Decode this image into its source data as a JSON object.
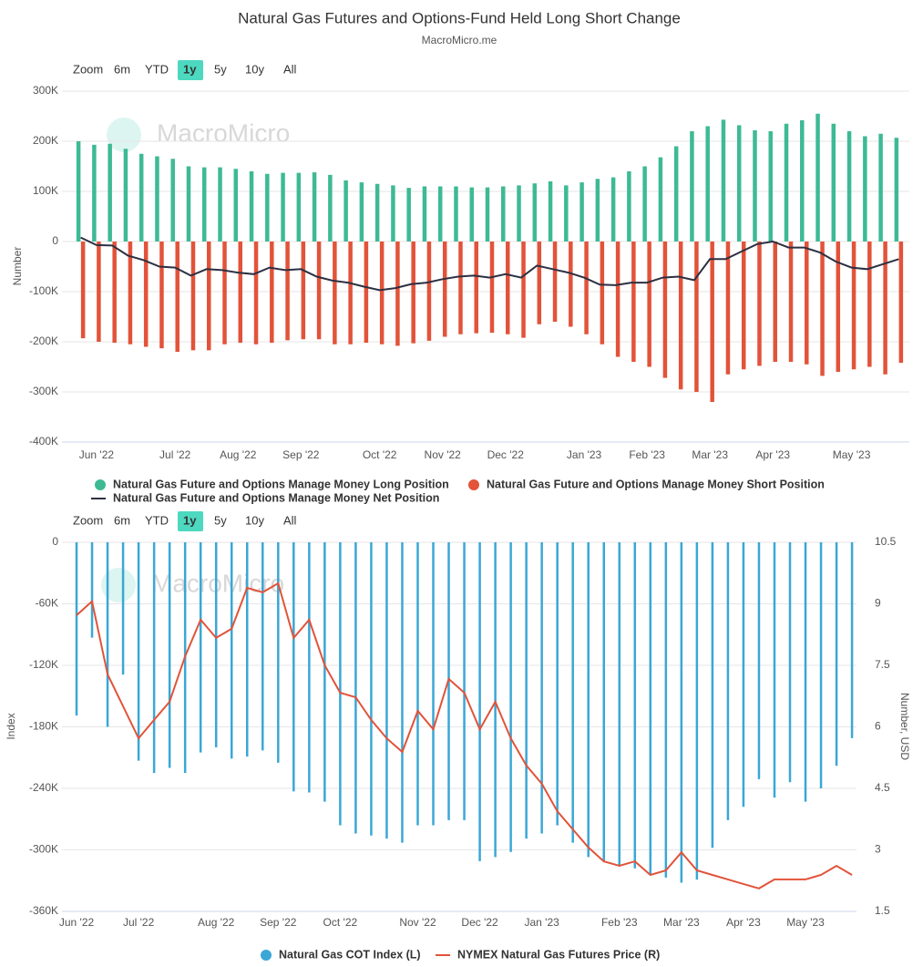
{
  "title": "Natural Gas Futures and Options-Fund Held Long Short Change",
  "subtitle": "MacroMicro.me",
  "chart_data": [
    {
      "type": "bar",
      "watermark": "MacroMicro",
      "zoom": {
        "label": "Zoom",
        "options": [
          "6m",
          "YTD",
          "1y",
          "5y",
          "10y",
          "All"
        ],
        "selected": "1y"
      },
      "ylabel": "Number",
      "categories": [
        null,
        "Jun '22",
        null,
        null,
        null,
        null,
        "Jul '22",
        null,
        null,
        null,
        "Aug '22",
        null,
        null,
        null,
        "Sep '22",
        null,
        null,
        null,
        null,
        "Oct '22",
        null,
        null,
        null,
        "Nov '22",
        null,
        null,
        null,
        "Dec '22",
        null,
        null,
        null,
        null,
        "Jan '23",
        null,
        null,
        null,
        "Feb '23",
        null,
        null,
        null,
        "Mar '23",
        null,
        null,
        null,
        "Apr '23",
        null,
        null,
        null,
        null,
        "May '23",
        null,
        null,
        null
      ],
      "ylim": [
        -400000,
        300000
      ],
      "yticks": [
        {
          "value": 300000,
          "label": "300K"
        },
        {
          "value": 200000,
          "label": "200K"
        },
        {
          "value": 100000,
          "label": "100K"
        },
        0,
        {
          "value": -100000,
          "label": "-100K"
        },
        {
          "value": -200000,
          "label": "-200K"
        },
        {
          "value": -300000,
          "label": "-300K"
        },
        {
          "value": -400000,
          "label": "-400K"
        }
      ],
      "grid": true,
      "series": [
        {
          "name": "Natural Gas Future and Options Manage Money Long Position",
          "type": "bar",
          "color": "#3dba94",
          "values": [
            200000,
            193000,
            195000,
            185000,
            175000,
            170000,
            165000,
            150000,
            148000,
            148000,
            145000,
            140000,
            135000,
            137000,
            137000,
            138000,
            133000,
            122000,
            118000,
            115000,
            112000,
            107000,
            110000,
            110000,
            110000,
            108000,
            108000,
            110000,
            112000,
            116000,
            120000,
            112000,
            118000,
            125000,
            128000,
            140000,
            150000,
            168000,
            190000,
            220000,
            230000,
            243000,
            232000,
            222000,
            220000,
            235000,
            242000,
            255000,
            235000,
            220000,
            210000,
            215000,
            207000
          ]
        },
        {
          "name": "Natural Gas Future and Options Manage Money Short Position",
          "type": "bar",
          "color": "#e2533a",
          "values": [
            -193000,
            -200000,
            -202000,
            -205000,
            -210000,
            -213000,
            -220000,
            -217000,
            -217000,
            -205000,
            -202000,
            -205000,
            -202000,
            -197000,
            -195000,
            -195000,
            -205000,
            -205000,
            -202000,
            -205000,
            -208000,
            -203000,
            -198000,
            -190000,
            -185000,
            -183000,
            -182000,
            -185000,
            -192000,
            -165000,
            -160000,
            -170000,
            -185000,
            -205000,
            -230000,
            -240000,
            -250000,
            -272000,
            -295000,
            -300000,
            -320000,
            -265000,
            -255000,
            -248000,
            -240000,
            -240000,
            -245000,
            -268000,
            -260000,
            -255000,
            -250000,
            -265000,
            -242000
          ]
        },
        {
          "name": "Natural Gas Future and Options Manage Money Net Position",
          "type": "line",
          "color": "#2d3042",
          "values": [
            8000,
            -7000,
            -8000,
            -28000,
            -37000,
            -50000,
            -52000,
            -68000,
            -55000,
            -57000,
            -62000,
            -65000,
            -52000,
            -57000,
            -55000,
            -70000,
            -78000,
            -82000,
            -90000,
            -97000,
            -93000,
            -85000,
            -82000,
            -75000,
            -70000,
            -68000,
            -72000,
            -65000,
            -72000,
            -48000,
            -55000,
            -62000,
            -72000,
            -86000,
            -87000,
            -82000,
            -82000,
            -72000,
            -70000,
            -77000,
            -35000,
            -35000,
            -20000,
            -5000,
            0,
            -12000,
            -12000,
            -22000,
            -40000,
            -52000,
            -55000,
            -45000,
            -35000
          ]
        }
      ]
    },
    {
      "type": "bar",
      "watermark": "MacroMicro",
      "zoom": {
        "label": "Zoom",
        "options": [
          "6m",
          "YTD",
          "1y",
          "5y",
          "10y",
          "All"
        ],
        "selected": "1y"
      },
      "ylabel": "Index",
      "y2label": "Number, USD",
      "categories": [
        "Jun '22",
        null,
        null,
        null,
        "Jul '22",
        null,
        null,
        null,
        null,
        "Aug '22",
        null,
        null,
        null,
        "Sep '22",
        null,
        null,
        null,
        "Oct '22",
        null,
        null,
        null,
        null,
        "Nov '22",
        null,
        null,
        null,
        "Dec '22",
        null,
        null,
        null,
        "Jan '23",
        null,
        null,
        null,
        null,
        "Feb '23",
        null,
        null,
        null,
        "Mar '23",
        null,
        null,
        null,
        "Apr '23",
        null,
        null,
        null,
        "May '23",
        null,
        null,
        null
      ],
      "ylim": [
        -360000,
        0
      ],
      "yticks": [
        0,
        {
          "value": -60000,
          "label": "-60K"
        },
        {
          "value": -120000,
          "label": "-120K"
        },
        {
          "value": -180000,
          "label": "-180K"
        },
        {
          "value": -240000,
          "label": "-240K"
        },
        {
          "value": -300000,
          "label": "-300K"
        },
        {
          "value": -360000,
          "label": "-360K"
        }
      ],
      "y2lim": [
        1.5,
        10.5
      ],
      "y2ticks": [
        1.5,
        3,
        4.5,
        6,
        7.5,
        9,
        10.5
      ],
      "grid": true,
      "series": [
        {
          "name": "Natural Gas COT Index (L)",
          "type": "bar",
          "color": "#3aa7d6",
          "values": [
            -169000,
            -93000,
            -180000,
            -129000,
            -213000,
            -225000,
            -220000,
            -225000,
            -205000,
            -200000,
            -211000,
            -209000,
            -203000,
            -215000,
            -243000,
            -244000,
            -253000,
            -276000,
            -284000,
            -286000,
            -289000,
            -293000,
            -276000,
            -276000,
            -271000,
            -271000,
            -311000,
            -307000,
            -302000,
            -289000,
            -284000,
            -276000,
            -293000,
            -307000,
            -311000,
            -316000,
            -318000,
            -324000,
            -327000,
            -332000,
            -329000,
            -298000,
            -271000,
            -258000,
            -231000,
            -249000,
            -234000,
            -253000,
            -240000,
            -218000,
            -191000
          ]
        },
        {
          "name": "NYMEX Natural Gas Futures Price (R)",
          "type": "line",
          "axis": "y2",
          "color": "#e2533a",
          "values": [
            8.72,
            9.06,
            7.28,
            6.5,
            5.72,
            6.17,
            6.61,
            7.72,
            8.61,
            8.17,
            8.39,
            9.39,
            9.28,
            9.5,
            8.17,
            8.61,
            7.5,
            6.83,
            6.72,
            6.17,
            5.72,
            5.39,
            6.39,
            5.94,
            7.17,
            6.83,
            5.94,
            6.61,
            5.72,
            5.06,
            4.61,
            3.94,
            3.5,
            3.06,
            2.72,
            2.61,
            2.72,
            2.39,
            2.5,
            2.94,
            2.5,
            2.39,
            2.28,
            2.17,
            2.06,
            2.28,
            2.28,
            2.28,
            2.39,
            2.61,
            2.39
          ]
        }
      ]
    }
  ]
}
